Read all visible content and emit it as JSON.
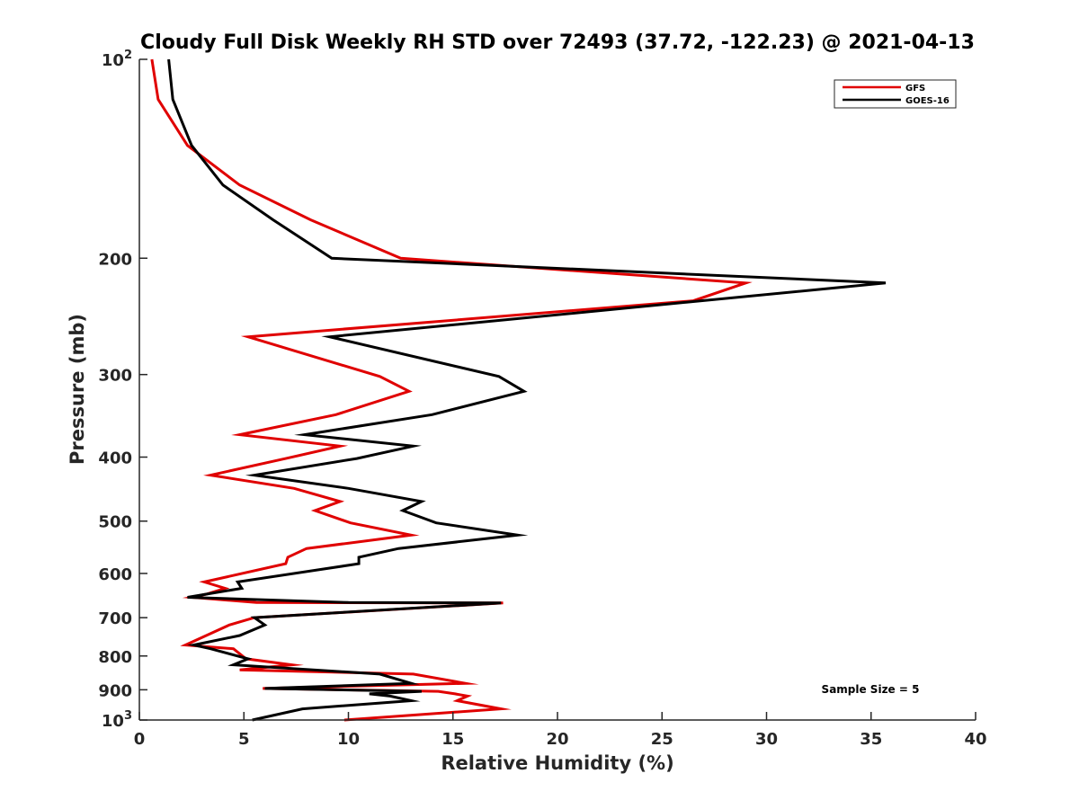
{
  "chart_data": {
    "type": "line",
    "title": "Cloudy Full Disk Weekly RH STD over 72493 (37.72, -122.23) @ 2021-04-13",
    "xlabel": "Relative Humidity (%)",
    "ylabel": "Pressure (mb)",
    "xlim": [
      0,
      40
    ],
    "ylim": [
      100,
      1000
    ],
    "y_scale": "log",
    "y_reversed": true,
    "x_ticks": [
      "0",
      "5",
      "10",
      "15",
      "20",
      "25",
      "30",
      "35",
      "40"
    ],
    "y_ticks": [
      {
        "value": 100,
        "base": "10",
        "exp": "2"
      },
      {
        "value": 200,
        "label": "200"
      },
      {
        "value": 300,
        "label": "300"
      },
      {
        "value": 400,
        "label": "400"
      },
      {
        "value": 500,
        "label": "500"
      },
      {
        "value": 600,
        "label": "600"
      },
      {
        "value": 700,
        "label": "700"
      },
      {
        "value": 800,
        "label": "800"
      },
      {
        "value": 900,
        "label": "900"
      },
      {
        "value": 1000,
        "base": "10",
        "exp": "3"
      }
    ],
    "legend_position": "top-right",
    "grid": false,
    "annotation": "Sample Size = 5",
    "series": [
      {
        "name": "GFS",
        "color": "#e00000",
        "points": [
          [
            0.6,
            100
          ],
          [
            0.9,
            115
          ],
          [
            2.3,
            135
          ],
          [
            4.8,
            155
          ],
          [
            8.2,
            175
          ],
          [
            12.5,
            200
          ],
          [
            29.0,
            218
          ],
          [
            26.5,
            232
          ],
          [
            5.2,
            263
          ],
          [
            11.5,
            302
          ],
          [
            12.9,
            318
          ],
          [
            9.4,
            345
          ],
          [
            4.8,
            370
          ],
          [
            9.6,
            385
          ],
          [
            7.0,
            402
          ],
          [
            3.4,
            426
          ],
          [
            7.4,
            446
          ],
          [
            9.6,
            467
          ],
          [
            8.4,
            482
          ],
          [
            10.1,
            503
          ],
          [
            13.0,
            525
          ],
          [
            8.0,
            550
          ],
          [
            7.1,
            567
          ],
          [
            7.0,
            580
          ],
          [
            3.1,
            618
          ],
          [
            4.1,
            632
          ],
          [
            3.2,
            645
          ],
          [
            2.5,
            652
          ],
          [
            5.6,
            664
          ],
          [
            17.4,
            665
          ],
          [
            5.5,
            700
          ],
          [
            4.3,
            718
          ],
          [
            3.2,
            745
          ],
          [
            2.2,
            770
          ],
          [
            4.5,
            780
          ],
          [
            5.1,
            808
          ],
          [
            7.3,
            825
          ],
          [
            4.8,
            840
          ],
          [
            13.1,
            852
          ],
          [
            15.6,
            880
          ],
          [
            5.9,
            896
          ],
          [
            14.3,
            905
          ],
          [
            15.1,
            913
          ],
          [
            15.7,
            920
          ],
          [
            15.2,
            935
          ],
          [
            17.3,
            962
          ],
          [
            9.8,
            1000
          ]
        ]
      },
      {
        "name": "GOES-16",
        "color": "#000000",
        "points": [
          [
            1.4,
            100
          ],
          [
            1.6,
            115
          ],
          [
            2.5,
            135
          ],
          [
            4.0,
            155
          ],
          [
            6.4,
            175
          ],
          [
            9.2,
            200
          ],
          [
            35.7,
            218
          ],
          [
            9.1,
            263
          ],
          [
            17.2,
            302
          ],
          [
            18.4,
            318
          ],
          [
            14.0,
            345
          ],
          [
            7.9,
            370
          ],
          [
            13.1,
            385
          ],
          [
            10.4,
            402
          ],
          [
            5.5,
            426
          ],
          [
            10.0,
            446
          ],
          [
            13.5,
            467
          ],
          [
            12.6,
            482
          ],
          [
            14.2,
            503
          ],
          [
            18.1,
            525
          ],
          [
            12.4,
            550
          ],
          [
            10.5,
            567
          ],
          [
            10.5,
            580
          ],
          [
            4.7,
            618
          ],
          [
            4.9,
            632
          ],
          [
            3.2,
            645
          ],
          [
            2.3,
            652
          ],
          [
            10.0,
            664
          ],
          [
            17.3,
            665
          ],
          [
            5.5,
            700
          ],
          [
            6.0,
            718
          ],
          [
            4.8,
            745
          ],
          [
            2.6,
            770
          ],
          [
            3.4,
            780
          ],
          [
            5.2,
            808
          ],
          [
            4.5,
            825
          ],
          [
            11.5,
            852
          ],
          [
            13.0,
            880
          ],
          [
            6.0,
            896
          ],
          [
            13.5,
            905
          ],
          [
            11.0,
            913
          ],
          [
            12.0,
            920
          ],
          [
            13.0,
            935
          ],
          [
            7.8,
            962
          ],
          [
            5.4,
            1000
          ]
        ]
      }
    ]
  }
}
